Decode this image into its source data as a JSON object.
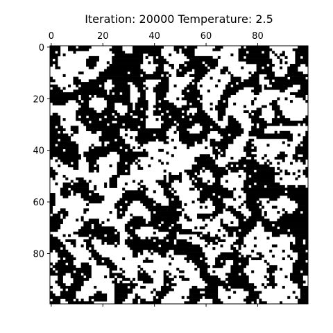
{
  "chart_data": {
    "type": "heatmap",
    "title": "Iteration: 20000 Temperature: 2.5",
    "grid_size": [
      100,
      100
    ],
    "x_ticks": [
      0,
      20,
      40,
      60,
      80
    ],
    "y_ticks": [
      0,
      20,
      40,
      60,
      80
    ],
    "x_axis_position": "top",
    "y_axis_position": "left",
    "colormap": {
      "spin_up": "#ffffff",
      "spin_down": "#000000"
    },
    "grid": false,
    "legend": "none"
  }
}
